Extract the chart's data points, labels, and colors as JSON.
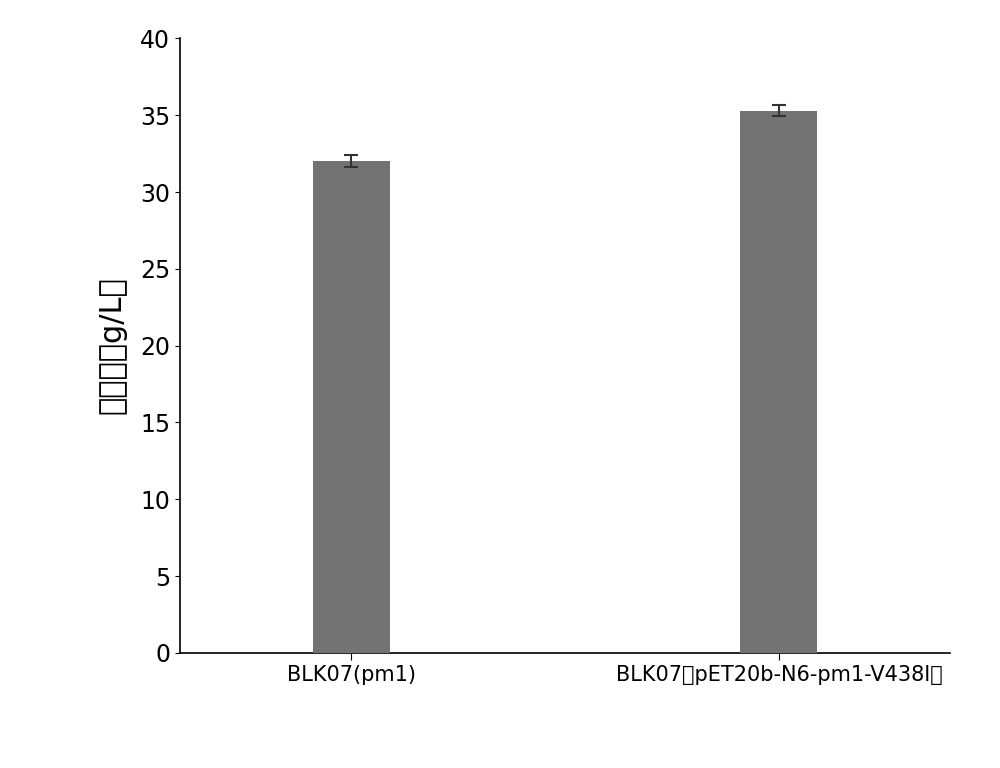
{
  "categories": [
    "BLK07(pm1)",
    "BLK07（pET20b-N6-pm1-V438I）"
  ],
  "values": [
    32.0,
    35.3
  ],
  "errors": [
    0.4,
    0.35
  ],
  "bar_color": "#737373",
  "bar_width": 0.18,
  "bar_positions": [
    1,
    2
  ],
  "ylabel": "丙酮酸（g/L）",
  "ylim": [
    0,
    40
  ],
  "yticks": [
    0,
    5,
    10,
    15,
    20,
    25,
    30,
    35,
    40
  ],
  "background_color": "#ffffff",
  "ylabel_fontsize": 22,
  "tick_fontsize": 17,
  "xtick_fontsize": 15,
  "error_capsize": 5,
  "error_linewidth": 1.5,
  "error_color": "#333333"
}
